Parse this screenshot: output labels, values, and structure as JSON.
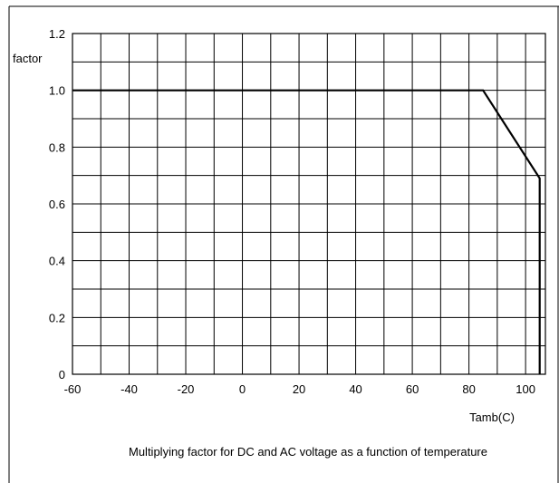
{
  "chart_data": {
    "type": "line",
    "caption": "Multiplying factor for DC and AC voltage as a function of temperature",
    "xlabel": "Tamb(C)",
    "ylabel": "factor",
    "xlim": [
      -60,
      107
    ],
    "ylim": [
      0,
      1.2
    ],
    "x_ticks": [
      -60,
      -40,
      -20,
      0,
      20,
      40,
      60,
      80,
      100
    ],
    "x_tick_labels": [
      "-60",
      "-40",
      "-20",
      "0",
      "20",
      "40",
      "60",
      "80",
      "100"
    ],
    "y_ticks": [
      0,
      0.2,
      0.4,
      0.6,
      0.8,
      1.0,
      1.2
    ],
    "y_tick_labels": [
      "0",
      "0.2",
      "0.4",
      "0.6",
      "0.8",
      "1.0",
      "1.2"
    ],
    "grid": true,
    "series": [
      {
        "x": [
          -60,
          85,
          105,
          105
        ],
        "y": [
          1.0,
          1.0,
          0.69,
          0
        ]
      }
    ]
  }
}
